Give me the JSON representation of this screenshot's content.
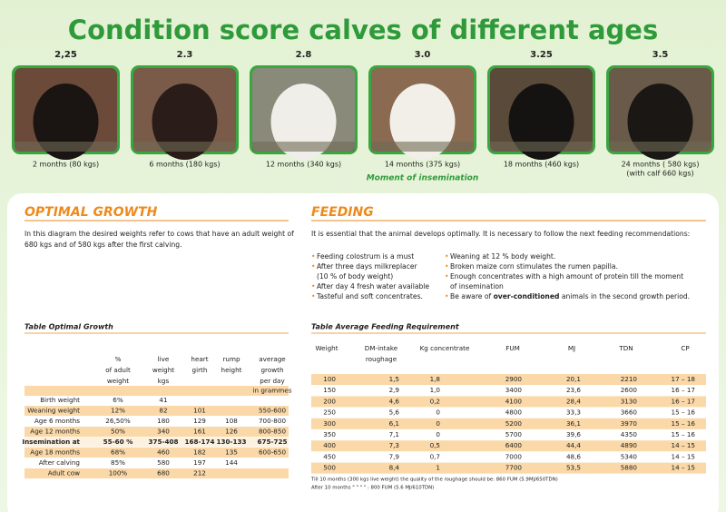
{
  "title": "Condition score calves of different ages",
  "calves": [
    {
      "score": "2,25",
      "caption": [
        "2 months (80 kgs)"
      ]
    },
    {
      "score": "2.3",
      "caption": [
        "6 months (180 kgs)"
      ]
    },
    {
      "score": "2.8",
      "caption": [
        "12 months (340 kgs)"
      ]
    },
    {
      "score": "3.0",
      "caption": [
        "14 months (375 kgs)"
      ],
      "note": "Moment of insemination"
    },
    {
      "score": "3.25",
      "caption": [
        "18 months (460 kgs)"
      ]
    },
    {
      "score": "3.5",
      "caption": [
        "24 months ( 580 kgs)",
        "(with calf 660 kgs)"
      ]
    }
  ],
  "optimal_growth": {
    "heading": "OPTIMAL GROWTH",
    "text": [
      "In this diagram the desired weights refer to cows that have an adult weight of",
      "680 kgs and of 580 kgs after the first  calving."
    ]
  },
  "feeding": {
    "heading": "FEEDING",
    "intro": "It is essential that the animal develops optimally. It is necessary to follow the next feeding recommendations:",
    "bullets_left": [
      [
        "Feeding colostrum is a must"
      ],
      [
        "After three days milkreplacer",
        "(10 % of body weight)"
      ],
      [
        " After day 4 fresh water available"
      ],
      [
        "Tasteful and soft concentrates."
      ]
    ],
    "bullets_right": [
      [
        "Weaning at 12 % body weight."
      ],
      [
        "Broken maize corn stimulates the rumen papilla."
      ],
      [
        "Enough concentrates with a high amount of protein till the moment",
        "of insemination"
      ],
      [
        {
          "text": "Be aware of ",
          "bold": "over-conditioned",
          "rest": " animals in the second growth period."
        }
      ]
    ]
  },
  "growth_table": {
    "title": "Table Optimal Growth",
    "headers": [
      [
        "%",
        "of adult",
        "weight"
      ],
      [
        "live",
        "weight",
        "kgs"
      ],
      [
        "heart",
        "girth"
      ],
      [
        "rump",
        "height"
      ],
      [
        "average",
        "growth",
        "per day"
      ]
    ],
    "unit": "in grammes",
    "rows": [
      [
        "Birth  weight",
        "6%",
        "41",
        null,
        null,
        null
      ],
      [
        "Weaning weight",
        "12%",
        "82",
        "101",
        null,
        "550-600"
      ],
      [
        "Age 6 months",
        "26,50%",
        "180",
        "129",
        "108",
        "700-800"
      ],
      [
        "Age 12 months",
        "50%",
        "340",
        "161",
        "126",
        "800-850"
      ],
      [
        "Insemination at",
        "55-60 %",
        "375-408",
        "168-174",
        "130-133",
        "675-725"
      ],
      [
        "Age 18 months",
        "68%",
        "460",
        "182",
        "135",
        "600-650"
      ],
      [
        "After calving",
        "85%",
        "580",
        "197",
        "144",
        null
      ],
      [
        "Adult cow",
        "100%",
        "680",
        "212",
        null,
        null
      ]
    ]
  },
  "feeding_table": {
    "title": "Table Average Feeding Requirement",
    "headers": [
      [
        "Weight"
      ],
      [
        "DM-intake",
        "roughage"
      ],
      [
        "Kg concentrate"
      ],
      [
        "FUM"
      ],
      [
        "MJ"
      ],
      [
        "TDN"
      ],
      [
        "CP"
      ]
    ],
    "rows": [
      [
        "100",
        "1,5",
        "1,8",
        "2900",
        "20,1",
        "2210",
        "17 – 18"
      ],
      [
        "150",
        "2,9",
        "1,0",
        "3400",
        "23,6",
        "2600",
        "16 – 17"
      ],
      [
        "200",
        "4,6",
        "0,2",
        "4100",
        "28,4",
        "3130",
        "16 – 17"
      ],
      [
        "250",
        "5,6",
        "0",
        "4800",
        "33,3",
        "3660",
        "15 – 16"
      ],
      [
        "300",
        "6,1",
        "0",
        "5200",
        "36,1",
        "3970",
        "15 – 16"
      ],
      [
        "350",
        "7,1",
        "0",
        "5700",
        "39,6",
        "4350",
        "15 – 16"
      ],
      [
        "400",
        "7,3",
        "0,5",
        "6400",
        "44,4",
        "4890",
        "14 – 15"
      ],
      [
        "450",
        "7,9",
        "0,7",
        "7000",
        "48,6",
        "5340",
        "14 – 15"
      ],
      [
        "500",
        "8,4",
        "1",
        "7700",
        "53,5",
        "5880",
        "14 – 15"
      ]
    ],
    "footnotes": [
      "Till 10 months (300 kgs live weight) the quality of the roughage should be: 860 FUM (5.9MJ/650TDN)",
      "After 10 months                                            \"            \"             \"             \"      : 800 FUM (5.6 MJ/610TDN)"
    ]
  }
}
